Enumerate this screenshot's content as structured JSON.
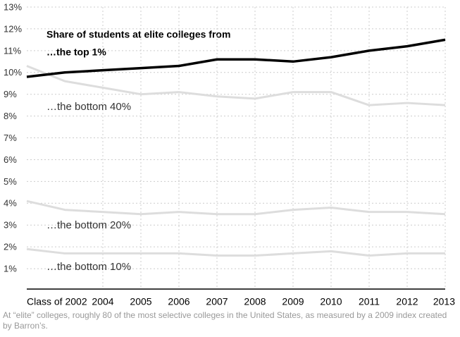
{
  "chart_data": {
    "type": "line",
    "title": "Share of students at elite colleges from",
    "x": [
      2002,
      2003,
      2004,
      2005,
      2006,
      2007,
      2008,
      2009,
      2010,
      2011,
      2012,
      2013
    ],
    "series": [
      {
        "name": "…the top 1%",
        "color": "#000000",
        "values": [
          9.8,
          10.0,
          10.1,
          10.2,
          10.3,
          10.6,
          10.6,
          10.5,
          10.7,
          11.0,
          11.2,
          11.5
        ]
      },
      {
        "name": "…the bottom 40%",
        "color": "#dddddd",
        "values": [
          10.3,
          9.6,
          9.3,
          9.0,
          9.1,
          8.9,
          8.8,
          9.1,
          9.1,
          8.5,
          8.6,
          8.5
        ]
      },
      {
        "name": "…the bottom 20%",
        "color": "#dddddd",
        "values": [
          4.1,
          3.7,
          3.6,
          3.5,
          3.6,
          3.5,
          3.5,
          3.7,
          3.8,
          3.6,
          3.6,
          3.5
        ]
      },
      {
        "name": "…the bottom 10%",
        "color": "#dddddd",
        "values": [
          1.9,
          1.7,
          1.7,
          1.7,
          1.7,
          1.6,
          1.6,
          1.7,
          1.8,
          1.6,
          1.7,
          1.7
        ]
      }
    ],
    "xlim": [
      2002,
      2013
    ],
    "xticks": [
      {
        "value": 2002,
        "label": "Class of 2002"
      },
      2004,
      2005,
      2006,
      2007,
      2008,
      2009,
      2010,
      2011,
      2012,
      2013
    ],
    "ylim": [
      0,
      13
    ],
    "yticks": [
      {
        "value": 1,
        "label": "1%"
      },
      {
        "value": 2,
        "label": "2%"
      },
      {
        "value": 3,
        "label": "3%"
      },
      {
        "value": 4,
        "label": "4%"
      },
      {
        "value": 5,
        "label": "5%"
      },
      {
        "value": 6,
        "label": "6%"
      },
      {
        "value": 7,
        "label": "7%"
      },
      {
        "value": 8,
        "label": "8%"
      },
      {
        "value": 9,
        "label": "9%"
      },
      {
        "value": 10,
        "label": "10%"
      },
      {
        "value": 11,
        "label": "11%"
      },
      {
        "value": 12,
        "label": "12%"
      },
      {
        "value": 13,
        "label": "13%"
      }
    ],
    "grid": true,
    "note": "At “elite” colleges, roughly 80 of the most selective colleges in the United States, as measured by a 2009 index created by Barron’s."
  }
}
